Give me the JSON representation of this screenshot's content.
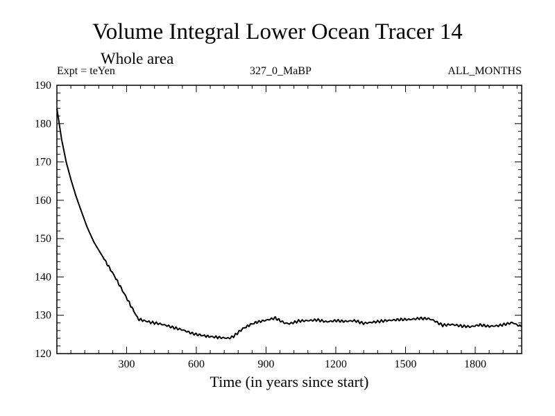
{
  "chart_data": {
    "type": "line",
    "title": "Volume Integral Lower Ocean Tracer 14",
    "subtitle": "Whole area",
    "expt_label": "Expt = teYen",
    "run_label": "327_0_MaBP",
    "months_label": "ALL_MONTHS",
    "xlabel": "Time (in years since start)",
    "ylabel": "",
    "xlim": [
      0,
      2000
    ],
    "ylim": [
      120,
      190
    ],
    "xticks": [
      300,
      600,
      900,
      1200,
      1500,
      1800
    ],
    "yticks": [
      120,
      130,
      140,
      150,
      160,
      170,
      180,
      190
    ],
    "line_color": "#000000",
    "series": [
      {
        "name": "Tracer 14",
        "x": [
          0,
          20,
          40,
          60,
          80,
          100,
          130,
          160,
          200,
          250,
          300,
          350,
          400,
          440,
          460,
          480,
          500,
          540,
          580,
          600,
          620,
          650,
          700,
          740,
          760,
          780,
          800,
          830,
          860,
          900,
          940,
          960,
          980,
          1000,
          1040,
          1080,
          1120,
          1160,
          1200,
          1240,
          1280,
          1320,
          1360,
          1400,
          1440,
          1480,
          1520,
          1560,
          1600,
          1620,
          1640,
          1660,
          1700,
          1740,
          1780,
          1820,
          1860,
          1900,
          1940,
          1960,
          1980,
          2000
        ],
        "y": [
          184,
          176,
          170,
          165.5,
          161.5,
          158,
          153,
          149,
          145,
          140,
          134.5,
          129,
          128.2,
          127.8,
          127.5,
          127.2,
          126.8,
          126.2,
          125.3,
          125,
          124.8,
          124.5,
          124.2,
          124,
          124.5,
          125.5,
          126.5,
          127.5,
          128.2,
          128.7,
          129.3,
          128.6,
          128,
          127.8,
          128.5,
          128.6,
          128.8,
          128.3,
          128.6,
          128.4,
          128.6,
          127.9,
          128.2,
          128.5,
          128.7,
          128.9,
          128.9,
          129.2,
          129.1,
          128.7,
          128,
          127.4,
          127.6,
          127.2,
          127,
          127.5,
          127.1,
          127.3,
          127.8,
          128.1,
          127.5,
          127
        ]
      }
    ]
  }
}
